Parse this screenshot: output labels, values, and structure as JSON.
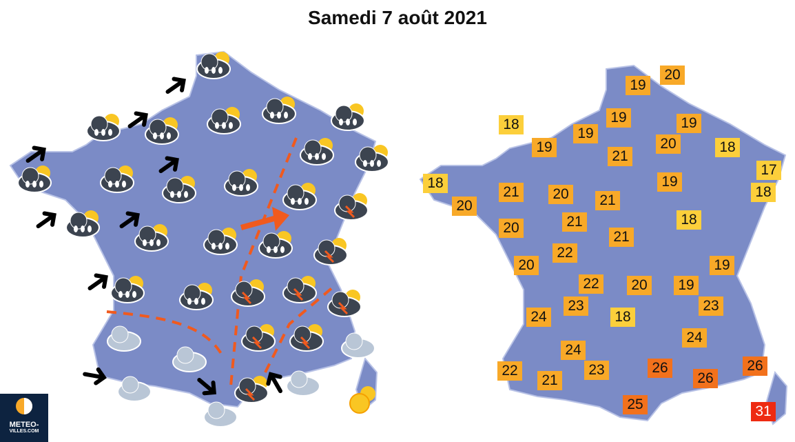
{
  "header": {
    "title": "Samedi 7 août 2021"
  },
  "logo": {
    "line1": "METEO-",
    "line2": "VILLES.COM"
  },
  "temperatures": [
    {
      "value": 19,
      "color": "#f8a928"
    },
    {
      "value": 20,
      "color": "#f8a928"
    },
    {
      "value": 18,
      "color": "#fccf3b"
    },
    {
      "value": 19,
      "color": "#f8a928"
    },
    {
      "value": 19,
      "color": "#f8a928"
    },
    {
      "value": 19,
      "color": "#f8a928"
    },
    {
      "value": 19,
      "color": "#f8a928"
    },
    {
      "value": 20,
      "color": "#f8a928"
    },
    {
      "value": 18,
      "color": "#fccf3b"
    },
    {
      "value": 21,
      "color": "#f8a928"
    },
    {
      "value": 17,
      "color": "#fccf3b"
    },
    {
      "value": 18,
      "color": "#fccf3b"
    },
    {
      "value": 20,
      "color": "#f8a928"
    },
    {
      "value": 21,
      "color": "#f8a928"
    },
    {
      "value": 20,
      "color": "#f8a928"
    },
    {
      "value": 21,
      "color": "#f8a928"
    },
    {
      "value": 19,
      "color": "#f8a928"
    },
    {
      "value": 18,
      "color": "#fccf3b"
    },
    {
      "value": 20,
      "color": "#f8a928"
    },
    {
      "value": 21,
      "color": "#f8a928"
    },
    {
      "value": 18,
      "color": "#fccf3b"
    },
    {
      "value": 21,
      "color": "#f8a928"
    },
    {
      "value": 22,
      "color": "#f8a928"
    },
    {
      "value": 20,
      "color": "#f8a928"
    },
    {
      "value": 19,
      "color": "#f8a928"
    },
    {
      "value": 22,
      "color": "#f8a928"
    },
    {
      "value": 20,
      "color": "#f8a928"
    },
    {
      "value": 19,
      "color": "#f8a928"
    },
    {
      "value": 23,
      "color": "#f8a928"
    },
    {
      "value": 23,
      "color": "#f8a928"
    },
    {
      "value": 24,
      "color": "#f8a928"
    },
    {
      "value": 18,
      "color": "#fccf3b"
    },
    {
      "value": 24,
      "color": "#f8a928"
    },
    {
      "value": 24,
      "color": "#f8a928"
    },
    {
      "value": 22,
      "color": "#f8a928"
    },
    {
      "value": 21,
      "color": "#f8a928"
    },
    {
      "value": 23,
      "color": "#f8a928"
    },
    {
      "value": 26,
      "color": "#f2711c"
    },
    {
      "value": 26,
      "color": "#f2711c"
    },
    {
      "value": 26,
      "color": "#f2711c"
    },
    {
      "value": 25,
      "color": "#f2711c"
    },
    {
      "value": 31,
      "color": "#ee2b12"
    }
  ]
}
